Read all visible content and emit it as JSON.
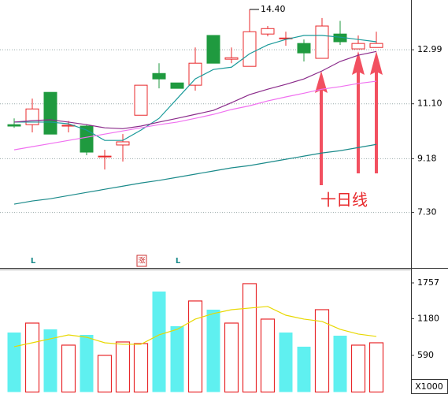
{
  "chart_data": [
    {
      "type": "candlestick",
      "open": [
        10.37,
        10.37,
        11.5,
        10.32,
        10.32,
        9.27,
        9.66,
        10.7,
        12.16,
        11.83,
        11.75,
        13.49,
        12.66,
        12.41,
        13.54,
        13.4,
        13.21,
        12.69,
        13.54,
        13.02,
        13.07
      ],
      "high": [
        10.59,
        11.28,
        11.5,
        10.5,
        10.37,
        9.49,
        10.04,
        11.75,
        12.52,
        11.83,
        13.07,
        13.49,
        13.07,
        14.4,
        13.82,
        13.62,
        13.35,
        14.1,
        14.0,
        13.49,
        13.62
      ],
      "low": [
        10.26,
        10.1,
        10.04,
        10.1,
        9.3,
        8.8,
        9.08,
        10.7,
        11.64,
        11.64,
        11.56,
        12.52,
        12.52,
        12.41,
        13.46,
        13.13,
        12.58,
        12.69,
        13.16,
        13.02,
        13.07
      ],
      "close": [
        10.32,
        10.92,
        10.04,
        10.35,
        9.41,
        9.27,
        9.77,
        11.75,
        11.97,
        11.64,
        12.52,
        12.52,
        12.71,
        13.62,
        13.73,
        13.4,
        12.88,
        13.82,
        13.27,
        13.21,
        13.21
      ],
      "up_color": "#e8282b",
      "down_color": "#1f9a3f",
      "series": [
        {
          "color": "#1a9a9a",
          "values": [
            10.46,
            10.46,
            10.46,
            10.4,
            10.18,
            9.82,
            9.82,
            10.18,
            10.59,
            11.28,
            11.97,
            12.3,
            12.38,
            12.85,
            13.16,
            13.35,
            13.49,
            13.49,
            13.43,
            13.35,
            13.27
          ]
        },
        {
          "color": "#8a2a8a",
          "values": [
            10.46,
            10.51,
            10.54,
            10.46,
            10.37,
            10.26,
            10.23,
            10.32,
            10.46,
            10.59,
            10.73,
            10.87,
            11.14,
            11.42,
            11.61,
            11.78,
            11.97,
            12.25,
            12.58,
            12.8,
            12.93
          ]
        },
        {
          "color": "#f070f0",
          "values": [
            9.49,
            9.6,
            9.71,
            9.82,
            9.93,
            10.04,
            10.15,
            10.26,
            10.37,
            10.46,
            10.59,
            10.73,
            10.9,
            11.03,
            11.2,
            11.34,
            11.47,
            11.61,
            11.7,
            11.81,
            11.89
          ]
        },
        {
          "color": "#1a8a8a",
          "values": [
            7.59,
            7.7,
            7.78,
            7.89,
            8.0,
            8.11,
            8.22,
            8.33,
            8.42,
            8.53,
            8.64,
            8.75,
            8.86,
            8.94,
            9.05,
            9.16,
            9.27,
            9.38,
            9.46,
            9.57,
            9.68
          ]
        }
      ],
      "high_marker": {
        "value": 14.4,
        "label": "14.40"
      },
      "ylim": [
        5.36,
        14.73
      ],
      "yticks": [
        {
          "value": 7.3,
          "label": "7.30"
        },
        9.18,
        {
          "value": 11.1,
          "label": "11.10"
        },
        12.99
      ],
      "grid": true,
      "annotation": "十日线",
      "markers": [
        "L",
        "涨",
        "L"
      ]
    },
    {
      "type": "bar",
      "values": [
        958,
        1110,
        1009,
        755,
        920,
        590,
        806,
        780,
        1618,
        1060,
        1466,
        1326,
        1110,
        1745,
        1174,
        958,
        730,
        1326,
        907,
        755,
        793
      ],
      "colors": [
        "#5ff0f0",
        "#e8282b",
        "#5ff0f0",
        "#e8282b",
        "#5ff0f0",
        "#e8282b",
        "#e8282b",
        "#e8282b",
        "#5ff0f0",
        "#5ff0f0",
        "#e8282b",
        "#5ff0f0",
        "#e8282b",
        "#e8282b",
        "#e8282b",
        "#5ff0f0",
        "#5ff0f0",
        "#e8282b",
        "#5ff0f0",
        "#e8282b",
        "#e8282b"
      ],
      "series": [
        {
          "color": "#e8d800",
          "values": [
            730,
            793,
            857,
            920,
            882,
            793,
            768,
            768,
            920,
            1009,
            1174,
            1263,
            1326,
            1352,
            1377,
            1237,
            1174,
            1136,
            1009,
            933,
            895
          ]
        }
      ],
      "ylim": [
        0,
        1960
      ],
      "yticks": [
        590,
        1180,
        1757
      ],
      "unit": "X1000"
    }
  ]
}
